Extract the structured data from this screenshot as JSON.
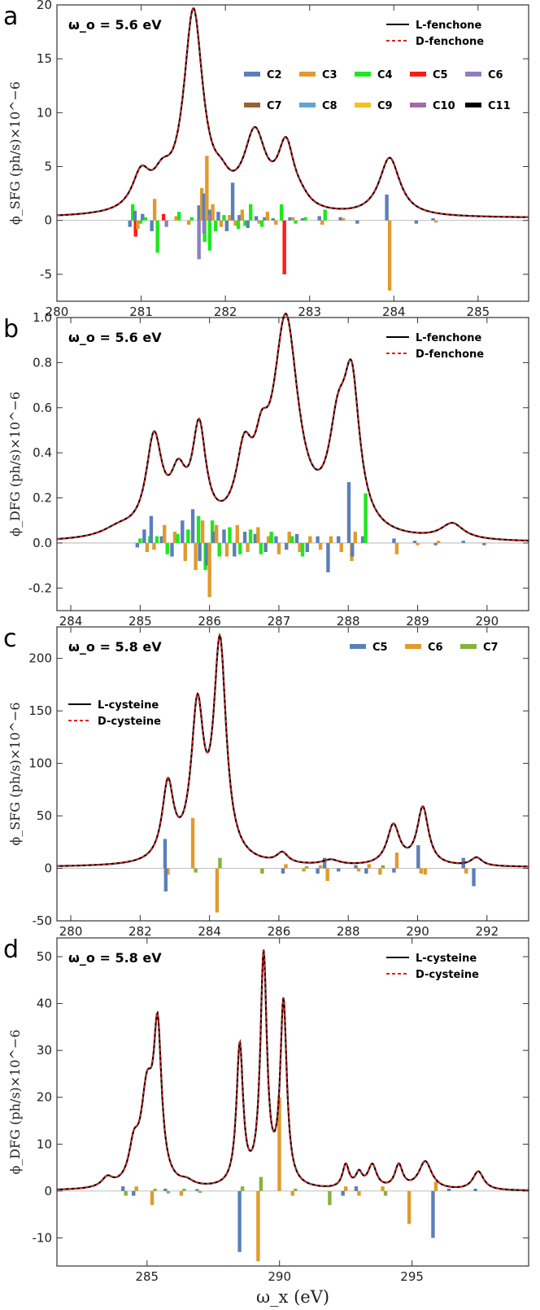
{
  "xaxis_title": "ω_x (eV)",
  "chart_data": [
    {
      "type": "line",
      "panel": "a",
      "omega_label": "ω_o = 5.6 eV",
      "ylabel": "ϕ_SFG (ph/s)×10^−6",
      "xlim": [
        280,
        285.6
      ],
      "ylim": [
        -7.5,
        20
      ],
      "xticks": [
        280,
        281,
        282,
        283,
        284,
        285
      ],
      "yticks": [
        -5,
        0,
        5,
        10,
        15,
        20
      ],
      "baseline": 0.2,
      "peaks": [
        [
          281.0,
          3.3,
          0.13
        ],
        [
          281.25,
          2.3,
          0.13
        ],
        [
          281.62,
          18.5,
          0.14
        ],
        [
          281.95,
          1.5,
          0.12
        ],
        [
          282.35,
          7.0,
          0.16
        ],
        [
          282.72,
          5.8,
          0.12
        ],
        [
          282.9,
          0.6,
          0.12
        ],
        [
          283.95,
          5.4,
          0.15
        ]
      ],
      "line_series": [
        {
          "name": "L-fenchone",
          "color": "#000000",
          "style": "solid"
        },
        {
          "name": "D-fenchone",
          "color": "#e8201c",
          "style": "dashed"
        }
      ],
      "bar_series": [
        {
          "name": "C2",
          "color": "#5b7fba"
        },
        {
          "name": "C3",
          "color": "#e09b2d"
        },
        {
          "name": "C4",
          "color": "#1ee81e"
        },
        {
          "name": "C5",
          "color": "#ff1a1a"
        },
        {
          "name": "C6",
          "color": "#8f7ec0"
        },
        {
          "name": "C7",
          "color": "#98622f"
        },
        {
          "name": "C8",
          "color": "#5ea5d6"
        },
        {
          "name": "C9",
          "color": "#f4c21c"
        },
        {
          "name": "C10",
          "color": "#a56aa8"
        },
        {
          "name": "C11",
          "color": "#000000"
        }
      ],
      "bars": [
        [
          280.9,
          -0.6,
          0,
          1.5,
          -1.5
        ],
        [
          280.96,
          0.9,
          -0.8,
          -0.3,
          0
        ],
        [
          281.05,
          0.6,
          0,
          0.3,
          0
        ],
        [
          281.16,
          -1.0,
          2.0,
          -3.0,
          0
        ],
        [
          281.3,
          0,
          0,
          0,
          0.6,
          -0.6
        ],
        [
          281.45,
          0,
          0.4,
          0.8,
          0
        ],
        [
          281.6,
          0,
          -0.4,
          0.3,
          0
        ],
        [
          281.72,
          1.4,
          3.0,
          -2.0,
          0,
          -3.6
        ],
        [
          281.78,
          2.5,
          6.0,
          -2.8,
          0,
          -1.2
        ],
        [
          281.85,
          1.0,
          1.5,
          -1.0,
          0,
          0.5
        ],
        [
          281.95,
          0.8,
          -0.6,
          0.5,
          0
        ],
        [
          282.05,
          -1.0,
          0.5,
          0,
          0
        ],
        [
          282.12,
          3.5,
          -0.5,
          -0.8,
          0
        ],
        [
          282.2,
          0.5,
          1.0,
          -0.5,
          0
        ],
        [
          282.3,
          -0.7,
          0,
          1.5,
          0
        ],
        [
          282.4,
          0.4,
          -0.3,
          -0.6,
          0
        ],
        [
          282.5,
          0.3,
          0.8,
          0,
          0
        ],
        [
          282.6,
          0.2,
          -0.4,
          0,
          0
        ],
        [
          282.7,
          0,
          0,
          1.5,
          -5.0
        ],
        [
          282.8,
          0.3,
          0.3,
          -0.3,
          0
        ],
        [
          282.95,
          0.2,
          0,
          0.3,
          0
        ],
        [
          283.15,
          0.4,
          -0.4,
          1.0,
          0
        ],
        [
          283.4,
          0.3,
          0.2,
          0,
          0
        ],
        [
          283.6,
          -0.3,
          0,
          0,
          0
        ],
        [
          283.95,
          2.4,
          -6.5,
          0,
          0
        ],
        [
          284.3,
          -0.3,
          0,
          0,
          0
        ],
        [
          284.5,
          0.2,
          -0.2,
          0,
          0
        ]
      ],
      "legend_position": "top-right"
    },
    {
      "type": "line",
      "panel": "b",
      "omega_label": "ω_o = 5.6 eV",
      "ylabel": "ϕ_DFG (ph/s)×10^−6",
      "xlim": [
        283.8,
        290.6
      ],
      "ylim": [
        -0.3,
        1.0
      ],
      "xticks": [
        284,
        285,
        286,
        287,
        288,
        289,
        290
      ],
      "yticks": [
        -0.2,
        0.0,
        0.2,
        0.4,
        0.6,
        0.8,
        1.0
      ],
      "yticklabels": [
        "-0.2",
        "0.0",
        "0.2",
        "0.4",
        "0.6",
        "0.8",
        "1.0"
      ],
      "baseline": 0.0,
      "peaks": [
        [
          284.7,
          0.04,
          0.3
        ],
        [
          285.2,
          0.42,
          0.14
        ],
        [
          285.55,
          0.22,
          0.14
        ],
        [
          285.85,
          0.44,
          0.12
        ],
        [
          286.5,
          0.3,
          0.14
        ],
        [
          286.75,
          0.22,
          0.12
        ],
        [
          287.1,
          0.94,
          0.22
        ],
        [
          287.85,
          0.38,
          0.16
        ],
        [
          288.05,
          0.6,
          0.14
        ],
        [
          289.5,
          0.07,
          0.2
        ]
      ],
      "line_series": [
        {
          "name": "L-fenchone",
          "color": "#000000",
          "style": "solid"
        },
        {
          "name": "D-fenchone",
          "color": "#e8201c",
          "style": "dashed"
        }
      ],
      "bars": [
        [
          285.0,
          -0.02,
          0,
          0.02,
          0
        ],
        [
          285.1,
          0.06,
          -0.04,
          0.03,
          0
        ],
        [
          285.2,
          0.12,
          -0.03,
          0.03,
          0
        ],
        [
          285.35,
          0.03,
          0.08,
          -0.05,
          0
        ],
        [
          285.5,
          -0.06,
          0.05,
          0.04,
          0
        ],
        [
          285.65,
          0.1,
          -0.08,
          0.06,
          0
        ],
        [
          285.8,
          0.15,
          -0.12,
          0.12,
          0
        ],
        [
          285.9,
          -0.08,
          0.1,
          -0.12,
          0
        ],
        [
          286.0,
          -0.1,
          -0.24,
          0.1,
          0
        ],
        [
          286.1,
          0.05,
          0.08,
          -0.06,
          0
        ],
        [
          286.25,
          0.06,
          -0.06,
          0.07,
          0
        ],
        [
          286.4,
          -0.06,
          0.08,
          -0.05,
          0
        ],
        [
          286.55,
          0.05,
          -0.04,
          0.06,
          0
        ],
        [
          286.7,
          0.04,
          0.07,
          -0.05,
          0
        ],
        [
          286.85,
          -0.04,
          0.03,
          0.05,
          0
        ],
        [
          287.0,
          0.03,
          -0.05,
          0,
          0
        ],
        [
          287.15,
          -0.03,
          0.05,
          0.03,
          0
        ],
        [
          287.3,
          0.04,
          -0.04,
          -0.06,
          0
        ],
        [
          287.45,
          -0.04,
          0.03,
          0,
          0
        ],
        [
          287.6,
          0.03,
          -0.03,
          0,
          0
        ],
        [
          287.75,
          -0.13,
          0.03,
          0,
          0
        ],
        [
          287.9,
          0.03,
          -0.04,
          0,
          0
        ],
        [
          288.05,
          0.27,
          -0.08,
          0,
          0
        ],
        [
          288.1,
          -0.06,
          0.05,
          0,
          0
        ],
        [
          288.25,
          0.03,
          0,
          0.22,
          0
        ],
        [
          288.7,
          0.02,
          -0.05,
          0,
          0
        ],
        [
          289.0,
          0.01,
          -0.01,
          0,
          0
        ],
        [
          289.3,
          -0.01,
          0.01,
          0,
          0
        ],
        [
          289.7,
          0.01,
          0,
          0,
          0
        ],
        [
          290.0,
          -0.01,
          0,
          0,
          0
        ]
      ],
      "legend_position": "top-right"
    },
    {
      "type": "line",
      "panel": "c",
      "omega_label": "ω_o = 5.8 eV",
      "ylabel": "ϕ_SFG (ph/s)×10^−6",
      "xlim": [
        279.6,
        293.2
      ],
      "ylim": [
        -50,
        230
      ],
      "xticks": [
        280,
        282,
        284,
        286,
        288,
        290,
        292
      ],
      "yticks": [
        -50,
        0,
        50,
        100,
        150,
        200
      ],
      "baseline": 1,
      "peaks": [
        [
          282.8,
          72,
          0.2
        ],
        [
          283.65,
          140,
          0.22
        ],
        [
          284.3,
          205,
          0.22
        ],
        [
          286.1,
          10,
          0.2
        ],
        [
          287.5,
          5,
          0.3
        ],
        [
          289.3,
          38,
          0.22
        ],
        [
          290.15,
          55,
          0.2
        ],
        [
          291.7,
          8,
          0.2
        ]
      ],
      "line_series": [
        {
          "name": "L-cysteine",
          "color": "#000000",
          "style": "solid"
        },
        {
          "name": "D-cysteine",
          "color": "#e8201c",
          "style": "dashed"
        }
      ],
      "bar_series": [
        {
          "name": "C5",
          "color": "#5b7fba"
        },
        {
          "name": "C6",
          "color": "#e09b2d"
        },
        {
          "name": "C7",
          "color": "#86b33c"
        }
      ],
      "bars": [
        [
          282.8,
          28,
          -6,
          0
        ],
        [
          282.82,
          -22,
          0,
          0
        ],
        [
          283.6,
          0,
          48,
          -4
        ],
        [
          284.3,
          0,
          -42,
          10
        ],
        [
          285.6,
          0,
          0,
          -5
        ],
        [
          286.2,
          -5,
          4,
          0
        ],
        [
          286.8,
          0,
          -3,
          2
        ],
        [
          287.2,
          -5,
          3,
          0
        ],
        [
          287.4,
          10,
          -12,
          0
        ],
        [
          287.8,
          -3,
          0,
          0
        ],
        [
          288.3,
          3,
          -3,
          0
        ],
        [
          288.6,
          -5,
          4,
          0
        ],
        [
          289.0,
          0,
          -6,
          3
        ],
        [
          289.4,
          -4,
          15,
          0
        ],
        [
          290.1,
          22,
          -5,
          0
        ],
        [
          290.3,
          0,
          -6,
          0
        ],
        [
          291.4,
          10,
          -5,
          0
        ],
        [
          291.7,
          -17,
          0,
          0
        ]
      ],
      "legend_position": "top-right"
    },
    {
      "type": "line",
      "panel": "d",
      "omega_label": "ω_o = 5.8 eV",
      "ylabel": "ϕ_DFG (ph/s)×10^−6",
      "xlim": [
        281.6,
        299.4
      ],
      "ylim": [
        -16,
        54
      ],
      "xticks": [
        285,
        290,
        295
      ],
      "yticks": [
        -10,
        0,
        10,
        20,
        30,
        40,
        50
      ],
      "baseline": 0,
      "peaks": [
        [
          283.5,
          2,
          0.25
        ],
        [
          284.5,
          7,
          0.22
        ],
        [
          285.0,
          19,
          0.28
        ],
        [
          285.4,
          31,
          0.18
        ],
        [
          286.5,
          1,
          0.3
        ],
        [
          288.5,
          30,
          0.15
        ],
        [
          289.4,
          49,
          0.15
        ],
        [
          290.15,
          39,
          0.15
        ],
        [
          292.5,
          5,
          0.15
        ],
        [
          293.0,
          3,
          0.15
        ],
        [
          293.5,
          5,
          0.2
        ],
        [
          294.5,
          5,
          0.18
        ],
        [
          295.5,
          6,
          0.3
        ],
        [
          297.5,
          4,
          0.25
        ]
      ],
      "line_series": [
        {
          "name": "L-cysteine",
          "color": "#000000",
          "style": "solid"
        },
        {
          "name": "D-cysteine",
          "color": "#e8201c",
          "style": "dashed"
        }
      ],
      "bars": [
        [
          284.2,
          1,
          0,
          -1
        ],
        [
          284.6,
          -1,
          1,
          0
        ],
        [
          285.3,
          0,
          -3,
          0.5
        ],
        [
          285.8,
          0.5,
          0,
          -0.5
        ],
        [
          286.4,
          0,
          -1,
          0.5
        ],
        [
          287.0,
          0.4,
          0,
          -0.4
        ],
        [
          288.6,
          -13,
          0,
          1
        ],
        [
          289.3,
          0,
          -15,
          3
        ],
        [
          290.1,
          0,
          20,
          0
        ],
        [
          290.6,
          0,
          -1,
          0.5
        ],
        [
          292.0,
          0,
          0,
          -3
        ],
        [
          292.5,
          -1,
          1,
          0
        ],
        [
          293.0,
          1,
          -1,
          0
        ],
        [
          294.0,
          0,
          1,
          -1
        ],
        [
          295.0,
          0,
          -7,
          0
        ],
        [
          295.9,
          -10,
          2,
          0
        ],
        [
          296.5,
          0.5,
          0,
          0
        ],
        [
          297.5,
          0.5,
          0,
          0
        ]
      ],
      "legend_position": "top-right"
    }
  ]
}
